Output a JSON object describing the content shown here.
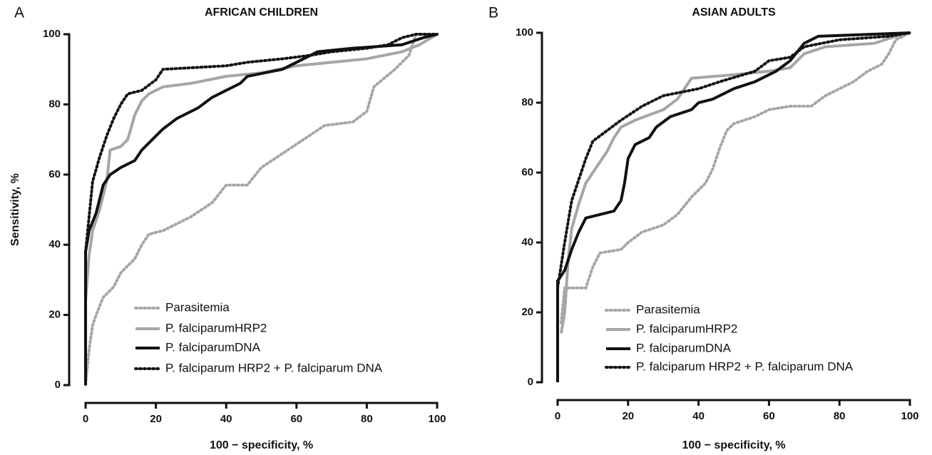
{
  "chart_data": [
    {
      "type": "line",
      "panel": "A",
      "title": "AFRICAN CHILDREN",
      "xlabel": "100 − specificity, %",
      "ylabel": "Sensitivity, %",
      "xlim": [
        0,
        100
      ],
      "ylim": [
        0,
        100
      ],
      "xticks": [
        0,
        20,
        40,
        60,
        80,
        100
      ],
      "yticks": [
        0,
        20,
        40,
        60,
        80,
        100
      ],
      "series": [
        {
          "name": "Parasitemia",
          "color": "#a6a6a6",
          "style": "dotted",
          "x": [
            0,
            1,
            2,
            3,
            5,
            8,
            10,
            14,
            16,
            18,
            22,
            26,
            30,
            36,
            40,
            46,
            50,
            56,
            62,
            68,
            76,
            80,
            82,
            88,
            92,
            94,
            100
          ],
          "values": [
            0,
            10,
            17,
            20,
            25,
            28,
            32,
            36,
            40,
            43,
            44,
            46,
            48,
            52,
            57,
            57,
            62,
            66,
            70,
            74,
            75,
            78,
            85,
            90,
            94,
            100,
            100
          ]
        },
        {
          "name": "P. falciparumHRP2",
          "color": "#a6a6a6",
          "style": "solid",
          "x": [
            0,
            1,
            2,
            4,
            6,
            7,
            10,
            12,
            14,
            16,
            18,
            22,
            30,
            40,
            50,
            60,
            70,
            80,
            90,
            95,
            100
          ],
          "values": [
            24,
            37,
            44,
            50,
            58,
            67,
            68,
            70,
            77,
            81,
            83,
            85,
            86,
            88,
            89,
            91,
            92,
            93,
            95,
            97,
            100
          ]
        },
        {
          "name": "P. falciparumDNA",
          "color": "#111111",
          "style": "solid",
          "x": [
            0,
            0,
            1,
            3,
            5,
            7,
            10,
            14,
            16,
            20,
            22,
            26,
            32,
            36,
            40,
            44,
            46,
            56,
            62,
            66,
            76,
            90,
            96,
            100
          ],
          "values": [
            0,
            38,
            44,
            49,
            57,
            60,
            62,
            64,
            67,
            71,
            73,
            76,
            79,
            82,
            84,
            86,
            88,
            90,
            93,
            95,
            96,
            97,
            99,
            100
          ]
        },
        {
          "name": "P. falciparum HRP2 + P. falciparum DNA",
          "color": "#111111",
          "style": "dotted",
          "x": [
            0,
            1,
            2,
            4,
            6,
            8,
            10,
            12,
            16,
            20,
            22,
            40,
            46,
            56,
            64,
            70,
            80,
            86,
            90,
            94,
            100
          ],
          "values": [
            38,
            48,
            58,
            65,
            71,
            76,
            80,
            83,
            84,
            87,
            90,
            91,
            92,
            93,
            94,
            95,
            96,
            97,
            99,
            100,
            100
          ]
        }
      ]
    },
    {
      "type": "line",
      "panel": "B",
      "title": "ASIAN ADULTS",
      "xlabel": "100 − specificity, %",
      "xlim": [
        0,
        100
      ],
      "ylim": [
        0,
        100
      ],
      "xticks": [
        0,
        20,
        40,
        60,
        80,
        100
      ],
      "yticks": [
        0,
        20,
        40,
        60,
        80,
        100
      ],
      "series": [
        {
          "name": "Parasitemia",
          "color": "#a6a6a6",
          "style": "dotted",
          "x": [
            1,
            2,
            8,
            10,
            12,
            18,
            20,
            24,
            30,
            34,
            38,
            42,
            44,
            46,
            48,
            50,
            56,
            60,
            66,
            72,
            76,
            80,
            84,
            88,
            92,
            94,
            96,
            100
          ],
          "values": [
            17,
            27,
            27,
            33,
            37,
            38,
            40,
            43,
            45,
            48,
            53,
            57,
            61,
            67,
            72,
            74,
            76,
            78,
            79,
            79,
            82,
            84,
            86,
            89,
            91,
            94,
            98,
            100
          ]
        },
        {
          "name": "P. falciparumHRP2",
          "color": "#a6a6a6",
          "style": "solid",
          "x": [
            1,
            2,
            3,
            4,
            6,
            8,
            10,
            12,
            14,
            16,
            18,
            22,
            30,
            34,
            36,
            38,
            50,
            60,
            66,
            70,
            76,
            90,
            96,
            100
          ],
          "values": [
            14,
            20,
            35,
            44,
            51,
            57,
            60,
            63,
            66,
            70,
            73,
            75,
            78,
            81,
            84,
            87,
            88,
            89,
            90,
            94,
            96,
            97,
            99,
            100
          ]
        },
        {
          "name": "P. falciparumDNA",
          "color": "#111111",
          "style": "solid",
          "x": [
            0,
            0,
            2,
            4,
            6,
            8,
            12,
            16,
            18,
            19,
            20,
            22,
            26,
            28,
            32,
            38,
            40,
            44,
            50,
            56,
            62,
            66,
            70,
            74,
            100
          ],
          "values": [
            0,
            29,
            32,
            38,
            43,
            47,
            48,
            49,
            52,
            57,
            64,
            68,
            70,
            73,
            76,
            78,
            80,
            81,
            84,
            86,
            89,
            92,
            97,
            99,
            100
          ]
        },
        {
          "name": "P. falciparum HRP2 + P. falciparum DNA",
          "color": "#111111",
          "style": "dotted",
          "x": [
            0,
            2,
            4,
            6,
            8,
            10,
            14,
            18,
            24,
            30,
            40,
            46,
            56,
            60,
            66,
            70,
            80,
            94,
            100
          ],
          "values": [
            27,
            40,
            52,
            58,
            64,
            69,
            72,
            75,
            79,
            82,
            84,
            86,
            89,
            92,
            93,
            96,
            98,
            99,
            100
          ]
        }
      ]
    }
  ]
}
